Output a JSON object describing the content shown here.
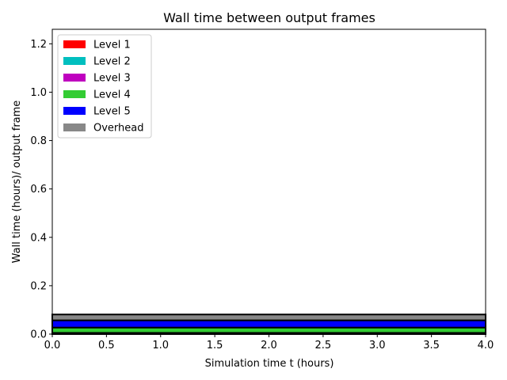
{
  "chart_data": {
    "type": "area",
    "title": "Wall time between output frames",
    "xlabel": "Simulation time t (hours)",
    "ylabel": "Wall time (hours)/ output frame",
    "xlim": [
      0.0,
      4.0
    ],
    "ylim": [
      0.0,
      1.26
    ],
    "x_ticks": [
      "0.0",
      "0.5",
      "1.0",
      "1.5",
      "2.0",
      "2.5",
      "3.0",
      "3.5",
      "4.0"
    ],
    "y_ticks": [
      "0.0",
      "0.2",
      "0.4",
      "0.6",
      "0.8",
      "1.0",
      "1.2"
    ],
    "grid": false,
    "legend_position": "upper-left",
    "x": [
      0.0,
      4.0
    ],
    "series": [
      {
        "name": "Level 1",
        "color": "#ff0000",
        "values": [
          0.003,
          0.003
        ]
      },
      {
        "name": "Level 2",
        "color": "#00bfbf",
        "values": [
          0.001,
          0.001
        ]
      },
      {
        "name": "Level 3",
        "color": "#bf00bf",
        "values": [
          0.001,
          0.001
        ]
      },
      {
        "name": "Level 4",
        "color": "#33cc33",
        "values": [
          0.022,
          0.022
        ]
      },
      {
        "name": "Level 5",
        "color": "#0000ff",
        "values": [
          0.03,
          0.03
        ]
      },
      {
        "name": "Overhead",
        "color": "#888888",
        "values": [
          0.024,
          0.024
        ]
      }
    ]
  }
}
